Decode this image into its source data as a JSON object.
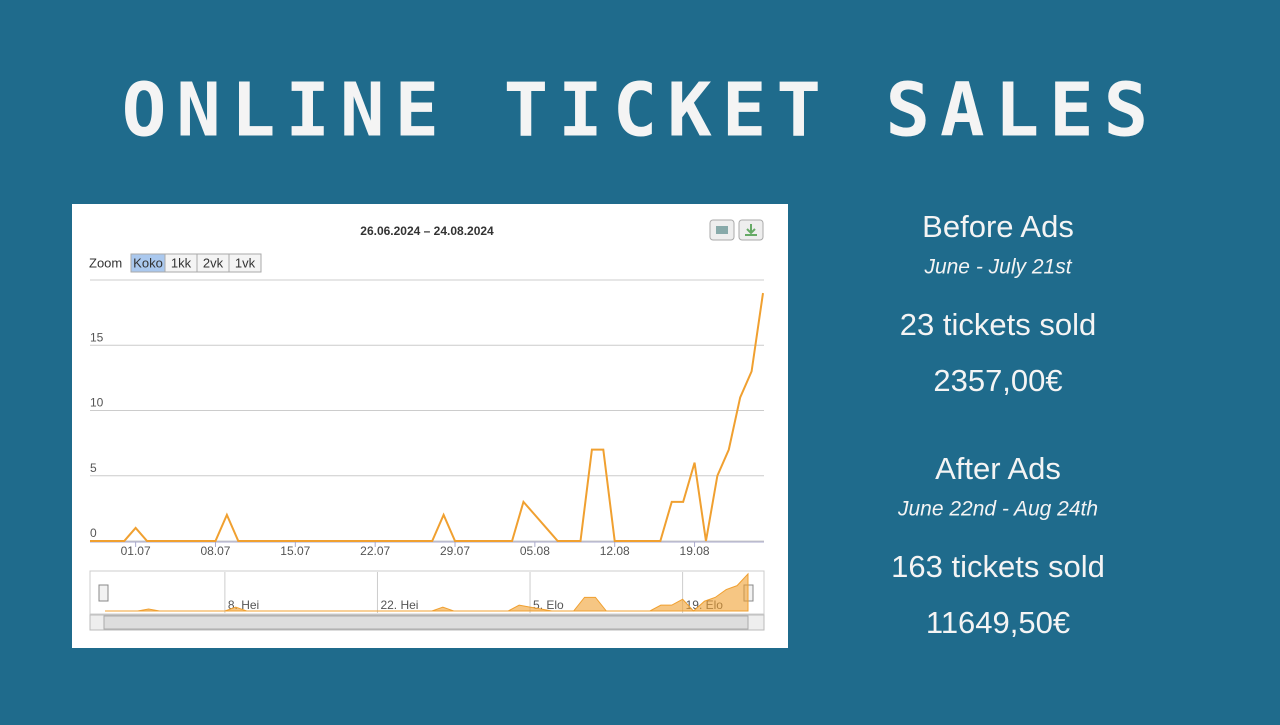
{
  "title": "ONLINE TICKET SALES",
  "chart_data": {
    "type": "line",
    "title": "26.06.2024 – 24.08.2024",
    "zoom": {
      "label": "Zoom",
      "buttons": [
        "Koko",
        "1kk",
        "2vk",
        "1vk"
      ]
    },
    "categories": [
      null,
      null,
      null,
      null,
      "01.07",
      null,
      null,
      null,
      null,
      null,
      null,
      "08.07",
      null,
      null,
      null,
      null,
      null,
      null,
      "15.07",
      null,
      null,
      null,
      null,
      null,
      null,
      "22.07",
      null,
      null,
      null,
      null,
      null,
      null,
      "29.07",
      null,
      null,
      null,
      null,
      null,
      null,
      "05.08",
      null,
      null,
      null,
      null,
      null,
      null,
      "12.08",
      null,
      null,
      null,
      null,
      null,
      null,
      "19.08",
      null,
      null,
      null,
      null,
      null,
      null
    ],
    "values": [
      0,
      0,
      0,
      0,
      1,
      0,
      0,
      0,
      0,
      0,
      0,
      0,
      2,
      0,
      0,
      0,
      0,
      0,
      0,
      0,
      0,
      0,
      0,
      0,
      0,
      0,
      0,
      0,
      0,
      0,
      0,
      2,
      0,
      0,
      0,
      0,
      0,
      0,
      3,
      2,
      1,
      0,
      0,
      0,
      7,
      7,
      0,
      0,
      0,
      0,
      0,
      3,
      3,
      6,
      0,
      5,
      7,
      11,
      13,
      19
    ],
    "color": "#f0a030",
    "ylim": [
      0,
      20
    ],
    "yticks": [
      0,
      5,
      10,
      15
    ],
    "grid": true,
    "navigator": {
      "labels": [
        "8. Hei",
        "22. Hei",
        "5. Elo",
        "19. Elo"
      ]
    }
  },
  "stats": [
    {
      "heading": "Before Ads",
      "period": "June - July 21st",
      "tickets": "23 tickets sold",
      "revenue": "2357,00€"
    },
    {
      "heading": "After Ads",
      "period": "June 22nd - Aug 24th",
      "tickets": "163 tickets sold",
      "revenue": "11649,50€"
    }
  ]
}
